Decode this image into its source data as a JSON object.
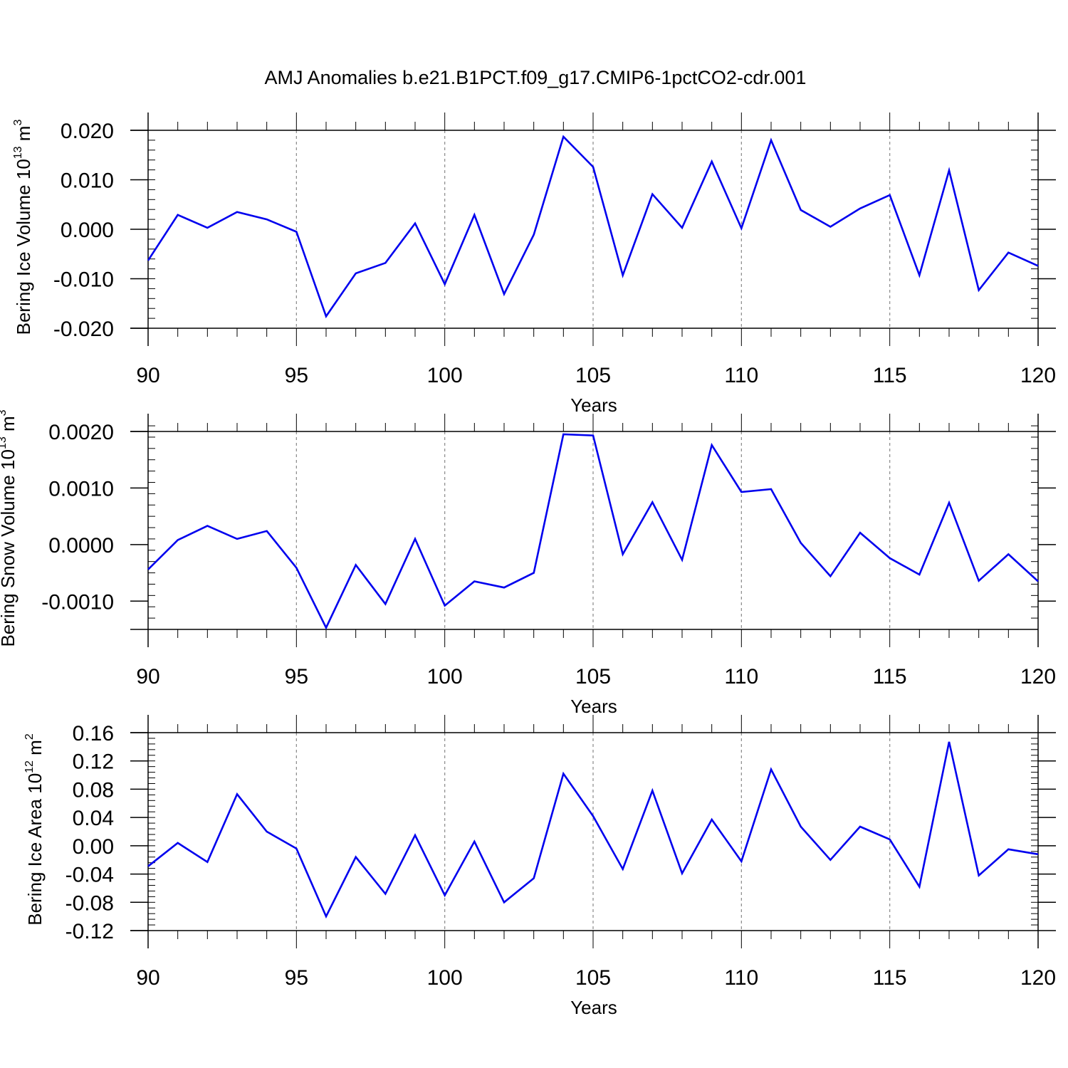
{
  "title": "AMJ Anomalies b.e21.B1PCT.f09_g17.CMIP6-1pctCO2-cdr.001",
  "colors": {
    "series": "#0000ee",
    "frame": "#000000",
    "grid": "#888888"
  },
  "chart_data": [
    {
      "type": "line",
      "ylabel": {
        "pre": "Bering Ice Volume 10",
        "sup": "13",
        "mid": " m",
        "sup2": "3"
      },
      "xlabel": "Years",
      "xlim": [
        90,
        120
      ],
      "ylim": [
        -0.02,
        0.02
      ],
      "xticks": [
        "90",
        "95",
        "100",
        "105",
        "110",
        "115",
        "120"
      ],
      "yticks": [
        {
          "value": 0.02,
          "label": "0.020"
        },
        {
          "value": 0.01,
          "label": "0.010"
        },
        {
          "value": 0.0,
          "label": "0.000"
        },
        {
          "value": -0.01,
          "label": "-0.010"
        },
        {
          "value": -0.02,
          "label": "-0.020"
        }
      ],
      "series": [
        {
          "name": "Bering Ice Volume",
          "x": [
            90,
            91,
            92,
            93,
            94,
            95,
            96,
            97,
            98,
            99,
            100,
            101,
            102,
            103,
            104,
            105,
            106,
            107,
            108,
            109,
            110,
            111,
            112,
            113,
            114,
            115,
            116,
            117,
            118,
            119,
            120
          ],
          "values": [
            -0.0063,
            0.0029,
            0.0003,
            0.0035,
            0.002,
            -0.0005,
            -0.0176,
            -0.0089,
            -0.0068,
            0.0012,
            -0.0111,
            0.0029,
            -0.0131,
            -0.0011,
            0.0187,
            0.0126,
            -0.0093,
            0.0071,
            0.0003,
            0.0137,
            0.0002,
            0.018,
            0.0039,
            0.0005,
            0.0042,
            0.0069,
            -0.0093,
            0.0119,
            -0.0123,
            -0.0047,
            -0.0074
          ]
        }
      ]
    },
    {
      "type": "line",
      "ylabel": {
        "pre": "Bering Snow Volume 10",
        "sup": "13",
        "mid": " m",
        "sup2": "3"
      },
      "xlabel": "Years",
      "xlim": [
        90,
        120
      ],
      "ylim": [
        -0.0015,
        0.002
      ],
      "xticks": [
        "90",
        "95",
        "100",
        "105",
        "110",
        "115",
        "120"
      ],
      "yticks": [
        {
          "value": 0.002,
          "label": "0.0020"
        },
        {
          "value": 0.001,
          "label": "0.0010"
        },
        {
          "value": 0.0,
          "label": "0.0000"
        },
        {
          "value": -0.001,
          "label": "-0.0010"
        }
      ],
      "series": [
        {
          "name": "Bering Snow Volume",
          "x": [
            90,
            91,
            92,
            93,
            94,
            95,
            96,
            97,
            98,
            99,
            100,
            101,
            102,
            103,
            104,
            105,
            106,
            107,
            108,
            109,
            110,
            111,
            112,
            113,
            114,
            115,
            116,
            117,
            118,
            119,
            120
          ],
          "values": [
            -0.00044,
            8e-05,
            0.00033,
            0.0001,
            0.00024,
            -0.00041,
            -0.00147,
            -0.00036,
            -0.00105,
            0.0001,
            -0.00108,
            -0.00065,
            -0.00076,
            -0.0005,
            0.00195,
            0.00193,
            -0.00017,
            0.00075,
            -0.00027,
            0.00176,
            0.00093,
            0.00098,
            3e-05,
            -0.00056,
            0.00021,
            -0.00024,
            -0.00053,
            0.00074,
            -0.00064,
            -0.00017,
            -0.00065
          ]
        }
      ]
    },
    {
      "type": "line",
      "ylabel": {
        "pre": "Bering Ice Area 10",
        "sup": "12",
        "mid": " m",
        "sup2": "2"
      },
      "xlabel": "Years",
      "xlim": [
        90,
        120
      ],
      "ylim": [
        -0.12,
        0.16
      ],
      "xticks": [
        "90",
        "95",
        "100",
        "105",
        "110",
        "115",
        "120"
      ],
      "yticks": [
        {
          "value": 0.16,
          "label": "0.16"
        },
        {
          "value": 0.12,
          "label": "0.12"
        },
        {
          "value": 0.08,
          "label": "0.08"
        },
        {
          "value": 0.04,
          "label": "0.04"
        },
        {
          "value": 0.0,
          "label": "0.00"
        },
        {
          "value": -0.04,
          "label": "-0.04"
        },
        {
          "value": -0.08,
          "label": "-0.08"
        },
        {
          "value": -0.12,
          "label": "-0.12"
        }
      ],
      "series": [
        {
          "name": "Bering Ice Area",
          "x": [
            90,
            91,
            92,
            93,
            94,
            95,
            96,
            97,
            98,
            99,
            100,
            101,
            102,
            103,
            104,
            105,
            106,
            107,
            108,
            109,
            110,
            111,
            112,
            113,
            114,
            115,
            116,
            117,
            118,
            119,
            120
          ],
          "values": [
            -0.029,
            0.004,
            -0.023,
            0.073,
            0.02,
            -0.004,
            -0.1,
            -0.016,
            -0.068,
            0.015,
            -0.07,
            0.006,
            -0.08,
            -0.046,
            0.102,
            0.042,
            -0.033,
            0.078,
            -0.039,
            0.037,
            -0.022,
            0.108,
            0.027,
            -0.02,
            0.027,
            0.009,
            -0.058,
            0.147,
            -0.042,
            -0.005,
            -0.012
          ]
        }
      ]
    }
  ]
}
